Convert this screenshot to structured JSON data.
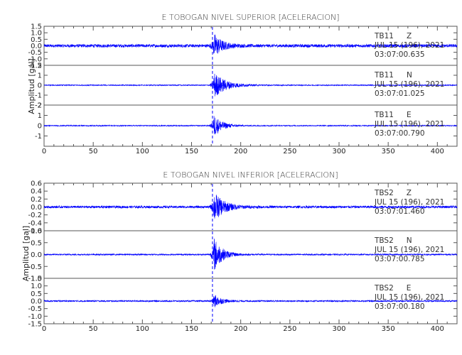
{
  "chart_data": [
    {
      "type": "line",
      "title": "E TOBOGAN NIVEL SUPERIOR [ACELERACION]",
      "ylabel": "Amplitud [gal]",
      "xlabel": "",
      "xlim": [
        0,
        420
      ],
      "x_ticks": [
        "0",
        "50",
        "100",
        "150",
        "200",
        "250",
        "300",
        "350",
        "400"
      ],
      "arrival_time_s": 172,
      "traces": [
        {
          "name": "TB11 Z",
          "station": "TB11",
          "component": "Z",
          "date": "JUL 15 (196), 2021",
          "time": "03:07:00.635",
          "ylim": [
            -1.5,
            1.5
          ],
          "y_tick_labels": [
            "1.5",
            "1.0",
            "0.5",
            "0.0",
            "-0.5",
            "-1.0",
            "-1.5"
          ],
          "noise_amplitude": 0.12,
          "peak_amplitude": 1.0,
          "decay_s": 8
        },
        {
          "name": "TB11 N",
          "station": "TB11",
          "component": "N",
          "date": "JUL 15 (196), 2021",
          "time": "03:07:01.025",
          "ylim": [
            -2,
            2
          ],
          "y_tick_labels": [
            "2",
            "1",
            "0",
            "-1",
            "-2"
          ],
          "noise_amplitude": 0.05,
          "peak_amplitude": 1.4,
          "decay_s": 12
        },
        {
          "name": "TB11 E",
          "station": "TB11",
          "component": "E",
          "date": "JUL 15 (196), 2021",
          "time": "03:07:00.790",
          "ylim": [
            -2,
            2
          ],
          "y_tick_labels": [
            "2",
            "1",
            "0",
            "-1"
          ],
          "noise_amplitude": 0.05,
          "peak_amplitude": 1.2,
          "decay_s": 8
        }
      ]
    },
    {
      "type": "line",
      "title": "E TOBOGAN NIVEL INFERIOR [ACELERACION]",
      "ylabel": "Amplitud [gal]",
      "xlabel": "",
      "xlim": [
        0,
        420
      ],
      "x_ticks": [
        "0",
        "50",
        "100",
        "150",
        "200",
        "250",
        "300",
        "350",
        "400"
      ],
      "arrival_time_s": 172,
      "traces": [
        {
          "name": "TBS2 Z",
          "station": "TBS2",
          "component": "Z",
          "date": "JUL 15 (196), 2021",
          "time": "03:07:01.460",
          "ylim": [
            -0.6,
            0.6
          ],
          "y_tick_labels": [
            "0.6",
            "0.4",
            "0.2",
            "0.0",
            "-0.2",
            "-0.4",
            "-0.6"
          ],
          "noise_amplitude": 0.03,
          "peak_amplitude": 0.4,
          "decay_s": 10
        },
        {
          "name": "TBS2 N",
          "station": "TBS2",
          "component": "N",
          "date": "JUL 15 (196), 2021",
          "time": "03:07:00.785",
          "ylim": [
            -1.0,
            1.0
          ],
          "y_tick_labels": [
            "1.0",
            "0.5",
            "0.0",
            "-0.5",
            "-1.0"
          ],
          "noise_amplitude": 0.03,
          "peak_amplitude": 0.8,
          "decay_s": 8
        },
        {
          "name": "TBS2 E",
          "station": "TBS2",
          "component": "E",
          "date": "JUL 15 (196), 2021",
          "time": "03:07:00.180",
          "ylim": [
            -1.5,
            1.5
          ],
          "y_tick_labels": [
            "1.5",
            "1.0",
            "0.5",
            "0.0",
            "-0.5",
            "-1.0",
            "-1.5"
          ],
          "noise_amplitude": 0.05,
          "peak_amplitude": 0.5,
          "decay_s": 7
        }
      ]
    }
  ],
  "colors": {
    "trace": "#0000ff",
    "axes": "#555555",
    "text": "#333333"
  }
}
